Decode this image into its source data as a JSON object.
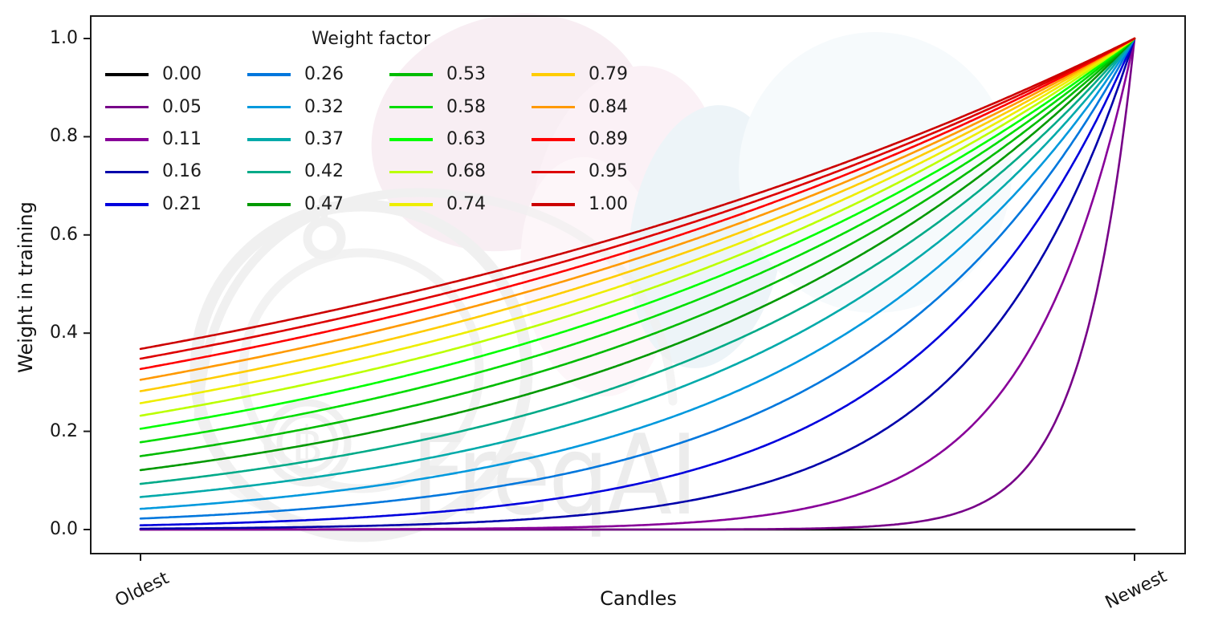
{
  "watermark": {
    "text": "FreqAI"
  },
  "colors": {
    "background": "#ffffff",
    "axes": "#1a1a1a",
    "watermark_gray": "#f0f0f0",
    "watermark_pink": "#f8eef3",
    "watermark_blue": "#edf4f8"
  },
  "chart_data": {
    "type": "line",
    "title": "",
    "xlabel": "Candles",
    "ylabel": "Weight in training",
    "x_tick_labels": [
      "Oldest",
      "Newest"
    ],
    "y_tick_labels": [
      "0.0",
      "0.2",
      "0.4",
      "0.6",
      "0.8",
      "1.0"
    ],
    "ylim": [
      0.0,
      1.0
    ],
    "x_range_note": "x axis is categorical candle age from Oldest (x=0) to Newest (x=1), no numeric ticks",
    "grid": false,
    "colormap": "nipy_spectral",
    "formula": "weight(x) = exp(-(1 - x) / weight_factor) for x in [0,1] (oldest to newest); weight_factor = 0.00 gives a flat line at 0",
    "x_samples": [
      0,
      0.25,
      0.5,
      0.75,
      1
    ],
    "legend": {
      "title": "Weight factor",
      "position": "upper left",
      "columns": 4,
      "column_order": "column-major"
    },
    "series": [
      {
        "label": "0.00",
        "weight_factor": 0.0,
        "color": "#000000",
        "values": [
          0,
          0,
          0,
          0,
          0
        ]
      },
      {
        "label": "0.05",
        "weight_factor": 0.0526,
        "color": "#770088",
        "values": [
          0.0,
          0.0,
          0.0001,
          0.0087,
          1.0
        ]
      },
      {
        "label": "0.11",
        "weight_factor": 0.1053,
        "color": "#880099",
        "values": [
          0.0001,
          0.0008,
          0.0087,
          0.093,
          1.0
        ]
      },
      {
        "label": "0.16",
        "weight_factor": 0.1579,
        "color": "#0000aa",
        "values": [
          0.0018,
          0.0087,
          0.0421,
          0.2053,
          1.0
        ]
      },
      {
        "label": "0.21",
        "weight_factor": 0.2105,
        "color": "#0000dd",
        "values": [
          0.0087,
          0.0284,
          0.093,
          0.305,
          1.0
        ]
      },
      {
        "label": "0.26",
        "weight_factor": 0.2632,
        "color": "#0077dd",
        "values": [
          0.0224,
          0.0578,
          0.1496,
          0.3867,
          1.0
        ]
      },
      {
        "label": "0.32",
        "weight_factor": 0.3158,
        "color": "#0099dd",
        "values": [
          0.0421,
          0.093,
          0.2053,
          0.4531,
          1.0
        ]
      },
      {
        "label": "0.37",
        "weight_factor": 0.3684,
        "color": "#00aaaa",
        "values": [
          0.0663,
          0.1306,
          0.2574,
          0.5073,
          1.0
        ]
      },
      {
        "label": "0.42",
        "weight_factor": 0.4211,
        "color": "#00aa88",
        "values": [
          0.093,
          0.1684,
          0.305,
          0.5522,
          1.0
        ]
      },
      {
        "label": "0.47",
        "weight_factor": 0.4737,
        "color": "#009900",
        "values": [
          0.1211,
          0.2053,
          0.348,
          0.5899,
          1.0
        ]
      },
      {
        "label": "0.53",
        "weight_factor": 0.5263,
        "color": "#00bb00",
        "values": [
          0.1496,
          0.2405,
          0.3867,
          0.6219,
          1.0
        ]
      },
      {
        "label": "0.58",
        "weight_factor": 0.5789,
        "color": "#00dd00",
        "values": [
          0.1778,
          0.2738,
          0.4216,
          0.6493,
          1.0
        ]
      },
      {
        "label": "0.63",
        "weight_factor": 0.6316,
        "color": "#00ff00",
        "values": [
          0.2053,
          0.305,
          0.4531,
          0.6732,
          1.0
        ]
      },
      {
        "label": "0.68",
        "weight_factor": 0.6842,
        "color": "#bbff00",
        "values": [
          0.2319,
          0.3341,
          0.4816,
          0.6939,
          1.0
        ]
      },
      {
        "label": "0.74",
        "weight_factor": 0.7368,
        "color": "#eeee00",
        "values": [
          0.2574,
          0.3614,
          0.5073,
          0.7123,
          1.0
        ]
      },
      {
        "label": "0.79",
        "weight_factor": 0.7895,
        "color": "#ffcc00",
        "values": [
          0.2817,
          0.3867,
          0.5308,
          0.7286,
          1.0
        ]
      },
      {
        "label": "0.84",
        "weight_factor": 0.8421,
        "color": "#ff9900",
        "values": [
          0.305,
          0.4104,
          0.5522,
          0.7431,
          1.0
        ]
      },
      {
        "label": "0.89",
        "weight_factor": 0.8947,
        "color": "#ff0000",
        "values": [
          0.3271,
          0.4325,
          0.5719,
          0.7562,
          1.0
        ]
      },
      {
        "label": "0.95",
        "weight_factor": 0.9474,
        "color": "#dd0000",
        "values": [
          0.348,
          0.4531,
          0.5899,
          0.7681,
          1.0
        ]
      },
      {
        "label": "1.00",
        "weight_factor": 1.0,
        "color": "#cc0000",
        "values": [
          0.3679,
          0.4724,
          0.6065,
          0.7788,
          1.0
        ]
      }
    ]
  }
}
